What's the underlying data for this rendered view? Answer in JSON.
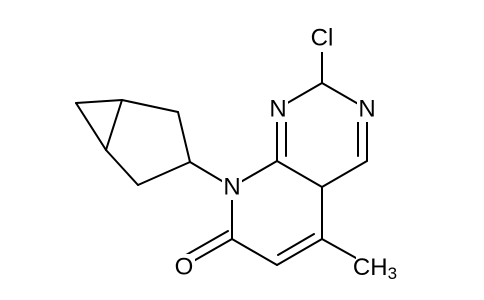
{
  "atoms": {
    "chlorine": "Cl",
    "n1": "N",
    "n3": "N",
    "n8": "N",
    "oxygen": "O",
    "methyl": {
      "main": "CH",
      "subscript": "3"
    }
  }
}
